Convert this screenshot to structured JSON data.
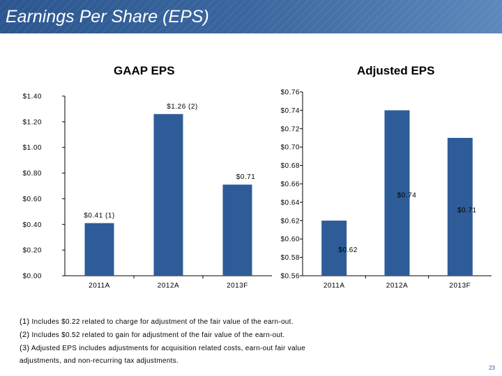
{
  "header": {
    "title": "Earnings Per Share (EPS)"
  },
  "chart_data": [
    {
      "type": "bar",
      "title": "GAAP EPS",
      "categories": [
        "2011A",
        "2012A",
        "2013F"
      ],
      "values": [
        0.41,
        1.26,
        0.71
      ],
      "data_labels": [
        "$0.41 (1)",
        "$1.26 (2)",
        "$0.71"
      ],
      "ylim": [
        0,
        1.4
      ],
      "yticks": [
        0,
        0.2,
        0.4,
        0.6,
        0.8,
        1.0,
        1.2,
        1.4
      ],
      "ytick_labels": [
        "$0.00",
        "$0.20",
        "$0.40",
        "$0.60",
        "$0.80",
        "$1.00",
        "$1.20",
        "$1.40"
      ],
      "color": "#2e5c99",
      "grid": false
    },
    {
      "type": "bar",
      "title": "Adjusted EPS",
      "categories": [
        "2011A",
        "2012A",
        "2013F"
      ],
      "values": [
        0.62,
        0.74,
        0.71
      ],
      "data_labels": [
        "$0.62",
        "$0.74",
        "$0.71"
      ],
      "ylim": [
        0.56,
        0.76
      ],
      "yticks": [
        0.56,
        0.58,
        0.6,
        0.62,
        0.64,
        0.66,
        0.68,
        0.7,
        0.72,
        0.74,
        0.76
      ],
      "ytick_labels": [
        "$0.56",
        "$0.58",
        "$0.60",
        "$0.62",
        "$0.64",
        "$0.66",
        "$0.68",
        "$0.70",
        "$0.72",
        "$0.74",
        "$0.76"
      ],
      "color": "#2e5c99",
      "grid": false
    }
  ],
  "footnotes": [
    {
      "num": "(1)",
      "text": "Includes $0.22 related to charge for adjustment of the fair value of the earn-out."
    },
    {
      "num": "(2)",
      "text": "Includes $0.52 related to gain for adjustment of the fair value of the earn-out."
    },
    {
      "num": "(3)",
      "text": "Adjusted EPS includes adjustments for acquisition related costs, earn-out fair value"
    },
    {
      "num": "",
      "text": "adjustments, and non-recurring tax adjustments."
    }
  ],
  "page_number": "23"
}
